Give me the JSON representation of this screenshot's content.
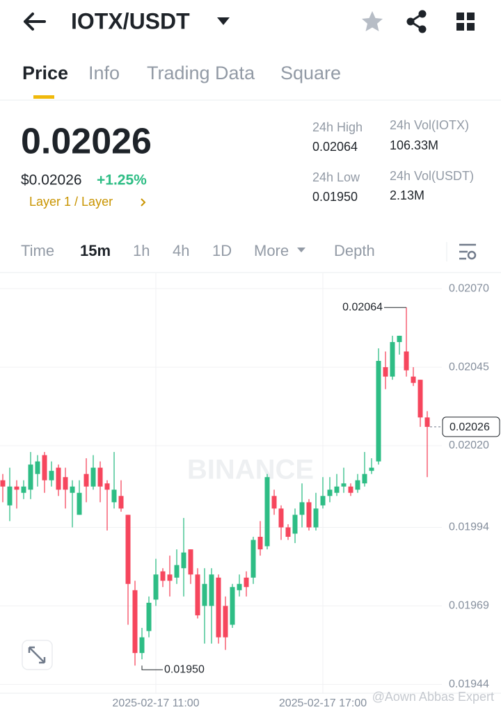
{
  "header": {
    "pair": "IOTX/USDT"
  },
  "tabs": [
    "Price",
    "Info",
    "Trading Data",
    "Square"
  ],
  "ticker": {
    "price": "0.02026",
    "usd_price": "$0.02026",
    "change": "+1.25%",
    "tag": "Layer 1 / Layer",
    "stats": [
      {
        "label": "24h High",
        "value": "0.02064"
      },
      {
        "label": "24h Vol(IOTX)",
        "value": "106.33M"
      },
      {
        "label": "24h Low",
        "value": "0.01950"
      },
      {
        "label": "24h Vol(USDT)",
        "value": "2.13M"
      }
    ]
  },
  "intervals": [
    "Time",
    "15m",
    "1h",
    "4h",
    "1D",
    "More",
    "Depth"
  ],
  "watermarks": [
    "BINANCE",
    "@Aown Abbas Expert"
  ],
  "chart_data": {
    "type": "candlestick",
    "categories": [
      null,
      null,
      null,
      null,
      null,
      null,
      null,
      null,
      null,
      null,
      null,
      null,
      null,
      null,
      null,
      null,
      null,
      null,
      null,
      null,
      null,
      null,
      "2025-02-17 11:00",
      null,
      null,
      null,
      null,
      null,
      null,
      null,
      null,
      null,
      null,
      null,
      null,
      null,
      null,
      null,
      null,
      null,
      null,
      null,
      null,
      null,
      null,
      null,
      "2025-02-17 17:00",
      null,
      null,
      null,
      null,
      null,
      null,
      null,
      null,
      null,
      null,
      null,
      null,
      null,
      null,
      null
    ],
    "open": [
      0.02009,
      0.02001,
      0.02007,
      0.02005,
      0.02006,
      0.02011,
      0.02017,
      0.02009,
      0.02013,
      0.0201,
      0.02005,
      0.01998,
      0.02011,
      0.02007,
      0.02013,
      0.02008,
      0.02002,
      0.02004,
      0.01998,
      0.01974,
      0.01954,
      0.01961,
      0.01971,
      0.0198,
      0.01979,
      0.01978,
      0.01981,
      0.01987,
      0.01979,
      0.01969,
      0.01969,
      0.01978,
      0.01969,
      0.01963,
      0.01974,
      0.01978,
      0.01978,
      0.01991,
      0.01988,
      0.02004,
      0.02,
      0.01994,
      0.01992,
      0.01998,
      0.02002,
      0.01994,
      0.02001,
      0.02004,
      0.02005,
      0.02007,
      0.02007,
      0.02006,
      0.02008,
      0.02012,
      0.02015,
      0.02045,
      0.02042,
      0.02053,
      0.0205,
      0.02042,
      0.02041,
      0.02029
    ],
    "high": [
      0.02011,
      0.02013,
      0.02009,
      0.02009,
      0.02018,
      0.02017,
      0.02018,
      0.02015,
      0.02014,
      0.02013,
      0.02009,
      0.02009,
      0.02016,
      0.02017,
      0.02015,
      0.02009,
      0.02018,
      0.02009,
      0.01998,
      0.01977,
      0.01962,
      0.01972,
      0.01984,
      0.01981,
      0.01985,
      0.01987,
      0.01997,
      0.01987,
      0.01981,
      0.01981,
      0.01981,
      0.01979,
      0.01972,
      0.01976,
      0.01979,
      0.0198,
      0.01991,
      0.01996,
      0.02011,
      0.02006,
      0.02001,
      0.01995,
      0.02,
      0.02008,
      0.02003,
      0.02005,
      0.0201,
      0.0201,
      0.02011,
      0.02013,
      0.02008,
      0.02011,
      0.02018,
      0.02016,
      0.02051,
      0.0205,
      0.02055,
      0.02055,
      0.02064,
      0.02045,
      0.02041,
      0.02031
    ],
    "low": [
      0.02002,
      0.01996,
      0.02,
      0.02003,
      0.02003,
      0.02007,
      0.02005,
      0.02007,
      0.02004,
      0.02,
      0.01994,
      0.01998,
      0.02002,
      0.02006,
      0.02002,
      0.01993,
      0.02,
      0.01999,
      0.01963,
      0.0195,
      0.01952,
      0.01959,
      0.01969,
      0.01975,
      0.01972,
      0.01976,
      0.01972,
      0.01976,
      0.01965,
      0.01957,
      0.01957,
      0.01957,
      0.01955,
      0.01962,
      0.01972,
      0.01972,
      0.01976,
      0.01985,
      0.01987,
      0.01998,
      0.0199,
      0.0199,
      0.01989,
      0.01994,
      0.01993,
      0.01993,
      0.02,
      0.02002,
      0.02004,
      0.02005,
      0.02004,
      0.02005,
      0.02007,
      0.02011,
      0.02014,
      0.02038,
      0.02041,
      0.02049,
      0.02042,
      0.02039,
      0.02026,
      0.0201
    ],
    "close": [
      0.02007,
      0.02007,
      0.02006,
      0.02007,
      0.02014,
      0.02015,
      0.02009,
      0.02012,
      0.02006,
      0.02006,
      0.02007,
      0.02005,
      0.02007,
      0.02013,
      0.02007,
      0.02006,
      0.02006,
      0.02,
      0.01976,
      0.01954,
      0.01959,
      0.0197,
      0.01979,
      0.01977,
      0.01977,
      0.01982,
      0.01986,
      0.01979,
      0.01966,
      0.01976,
      0.01979,
      0.01959,
      0.01959,
      0.01975,
      0.01976,
      0.01975,
      0.0199,
      0.01987,
      0.0201,
      0.02,
      0.01994,
      0.01991,
      0.01998,
      0.02002,
      0.01994,
      0.02,
      0.02004,
      0.02006,
      0.02007,
      0.02008,
      0.02005,
      0.02009,
      0.02011,
      0.02013,
      0.02047,
      0.02042,
      0.02053,
      0.02055,
      0.02044,
      0.0204,
      0.02029,
      0.02026
    ],
    "up_color": "#2ebd85",
    "down_color": "#f6465d",
    "ylim": [
      0.019412,
      0.020749
    ],
    "yticks": [
      {
        "value": 0.0207,
        "label": "0.02070"
      },
      0.02045,
      {
        "value": 0.0202,
        "label": "0.02020"
      },
      0.01994,
      0.01969,
      0.01944
    ],
    "grid": true,
    "annotations": [
      {
        "value": 0.02064,
        "label": "0.02064"
      },
      {
        "value": 0.0195,
        "label": "0.01950"
      }
    ],
    "last_price": 0.02026
  }
}
